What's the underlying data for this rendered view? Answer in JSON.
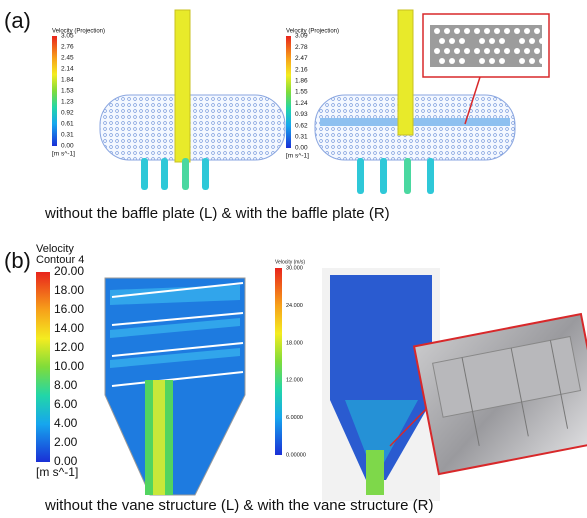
{
  "panel_a": {
    "label": "(a)",
    "left_legend": {
      "title_lines": [
        "Velocity (Projection)"
      ],
      "ticks": [
        "3.05",
        "2.76",
        "2.45",
        "2.14",
        "1.84",
        "1.53",
        "1.23",
        "0.92",
        "0.61",
        "0.31",
        "0.00"
      ],
      "unit": "[m s^-1]"
    },
    "right_legend": {
      "title_lines": [
        "Velocity (Projection)"
      ],
      "ticks": [
        "3.09",
        "2.78",
        "2.47",
        "2.16",
        "1.86",
        "1.55",
        "1.24",
        "0.93",
        "0.62",
        "0.31",
        "0.00"
      ],
      "unit": "[m s^-1]"
    },
    "caption": "without the baffle plate (L) & with the baffle plate (R)"
  },
  "panel_b": {
    "label": "(b)",
    "left_legend": {
      "title_lines": [
        "Velocity",
        "Contour 4"
      ],
      "ticks": [
        "20.00",
        "18.00",
        "16.00",
        "14.00",
        "12.00",
        "10.00",
        "8.00",
        "6.00",
        "4.00",
        "2.00",
        "0.00"
      ],
      "unit": "[m s^-1]"
    },
    "right_legend": {
      "title_lines": [
        "Velocity (m/s)"
      ],
      "ticks": [
        "30.000",
        "24.000",
        "18.000",
        "12.000",
        "6.0000",
        "0.00000"
      ]
    },
    "caption": "without the vane structure (L) & with the vane structure (R)"
  }
}
